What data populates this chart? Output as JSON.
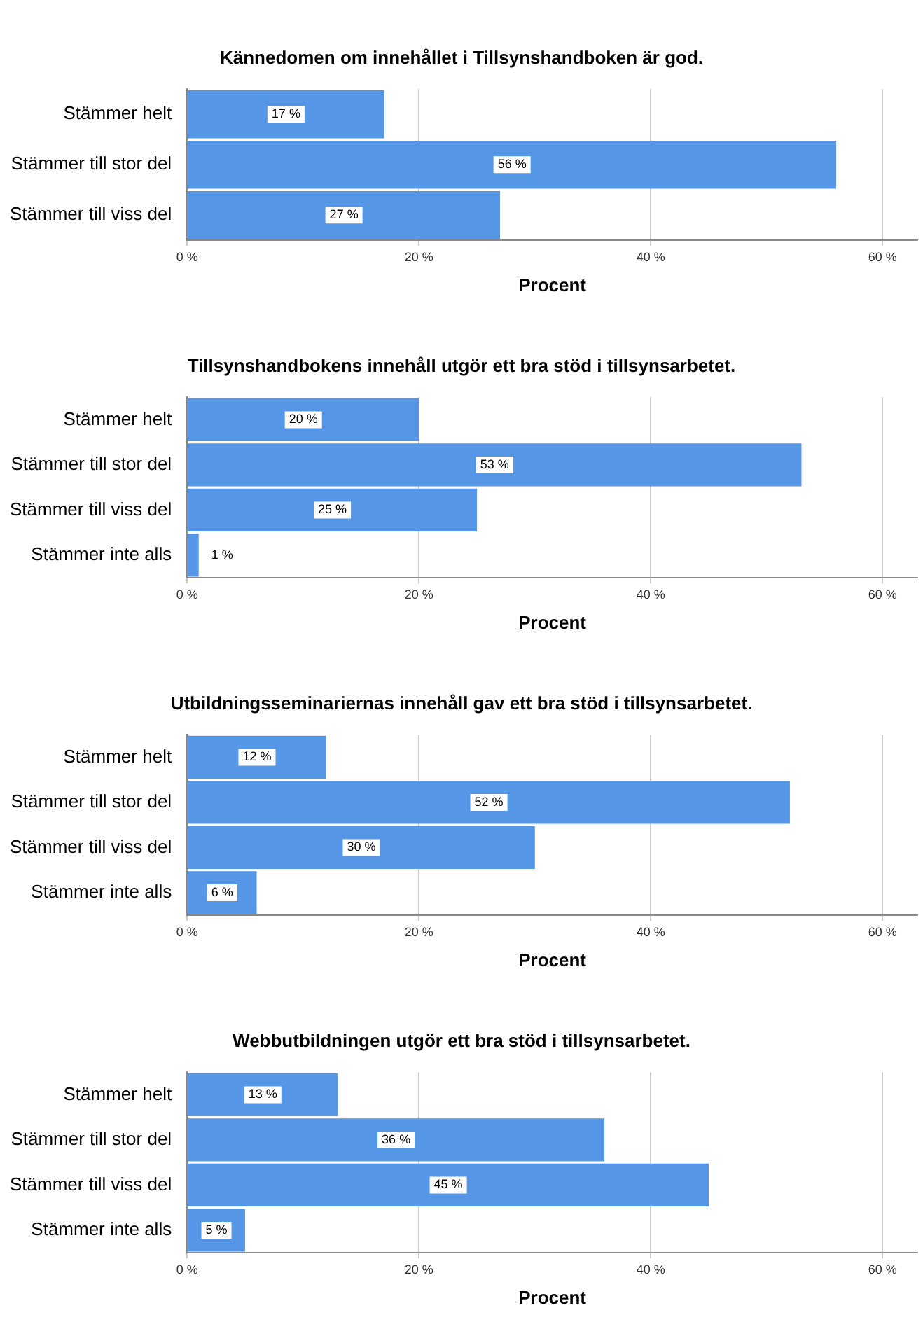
{
  "chart_data": [
    {
      "type": "bar",
      "orientation": "horizontal",
      "title": "Kännedomen om innehållet i Tillsynshandboken är god.",
      "categories": [
        "Stämmer helt",
        "Stämmer till stor del",
        "Stämmer till viss del"
      ],
      "values": [
        17,
        56,
        27
      ],
      "value_labels": [
        "17 %",
        "56 %",
        "27 %"
      ],
      "color": "#5596e6",
      "xlim": [
        0,
        63
      ],
      "xticks": [
        {
          "value": 0,
          "label": "0 %"
        },
        {
          "value": 20,
          "label": "20 %"
        },
        {
          "value": 40,
          "label": "40 %"
        },
        {
          "value": 60,
          "label": "60 %"
        }
      ],
      "xlabel": "Procent",
      "grid": "x"
    },
    {
      "type": "bar",
      "orientation": "horizontal",
      "title": "Tillsynshandbokens innehåll utgör ett bra stöd i tillsynsarbetet.",
      "categories": [
        "Stämmer helt",
        "Stämmer till stor del",
        "Stämmer till viss del",
        "Stämmer inte alls"
      ],
      "values": [
        20,
        53,
        25,
        1
      ],
      "value_labels": [
        "20 %",
        "53 %",
        "25 %",
        "1 %"
      ],
      "color": "#5596e6",
      "xlim": [
        0,
        63
      ],
      "xticks": [
        {
          "value": 0,
          "label": "0 %"
        },
        {
          "value": 20,
          "label": "20 %"
        },
        {
          "value": 40,
          "label": "40 %"
        },
        {
          "value": 60,
          "label": "60 %"
        }
      ],
      "xlabel": "Procent",
      "grid": "x"
    },
    {
      "type": "bar",
      "orientation": "horizontal",
      "title": "Utbildningsseminariernas innehåll gav ett bra stöd i tillsynsarbetet.",
      "categories": [
        "Stämmer helt",
        "Stämmer till stor del",
        "Stämmer till viss del",
        "Stämmer inte alls"
      ],
      "values": [
        12,
        52,
        30,
        6
      ],
      "value_labels": [
        "12 %",
        "52 %",
        "30 %",
        "6 %"
      ],
      "color": "#5596e6",
      "xlim": [
        0,
        63
      ],
      "xticks": [
        {
          "value": 0,
          "label": "0 %"
        },
        {
          "value": 20,
          "label": "20 %"
        },
        {
          "value": 40,
          "label": "40 %"
        },
        {
          "value": 60,
          "label": "60 %"
        }
      ],
      "xlabel": "Procent",
      "grid": "x"
    },
    {
      "type": "bar",
      "orientation": "horizontal",
      "title": "Webbutbildningen utgör ett bra stöd i tillsynsarbetet.",
      "categories": [
        "Stämmer helt",
        "Stämmer till stor del",
        "Stämmer till viss del",
        "Stämmer inte alls"
      ],
      "values": [
        13,
        36,
        45,
        5
      ],
      "value_labels": [
        "13 %",
        "36 %",
        "45 %",
        "5 %"
      ],
      "color": "#5596e6",
      "xlim": [
        0,
        63
      ],
      "xticks": [
        {
          "value": 0,
          "label": "0 %"
        },
        {
          "value": 20,
          "label": "20 %"
        },
        {
          "value": 40,
          "label": "40 %"
        },
        {
          "value": 60,
          "label": "60 %"
        }
      ],
      "xlabel": "Procent",
      "grid": "x"
    }
  ]
}
